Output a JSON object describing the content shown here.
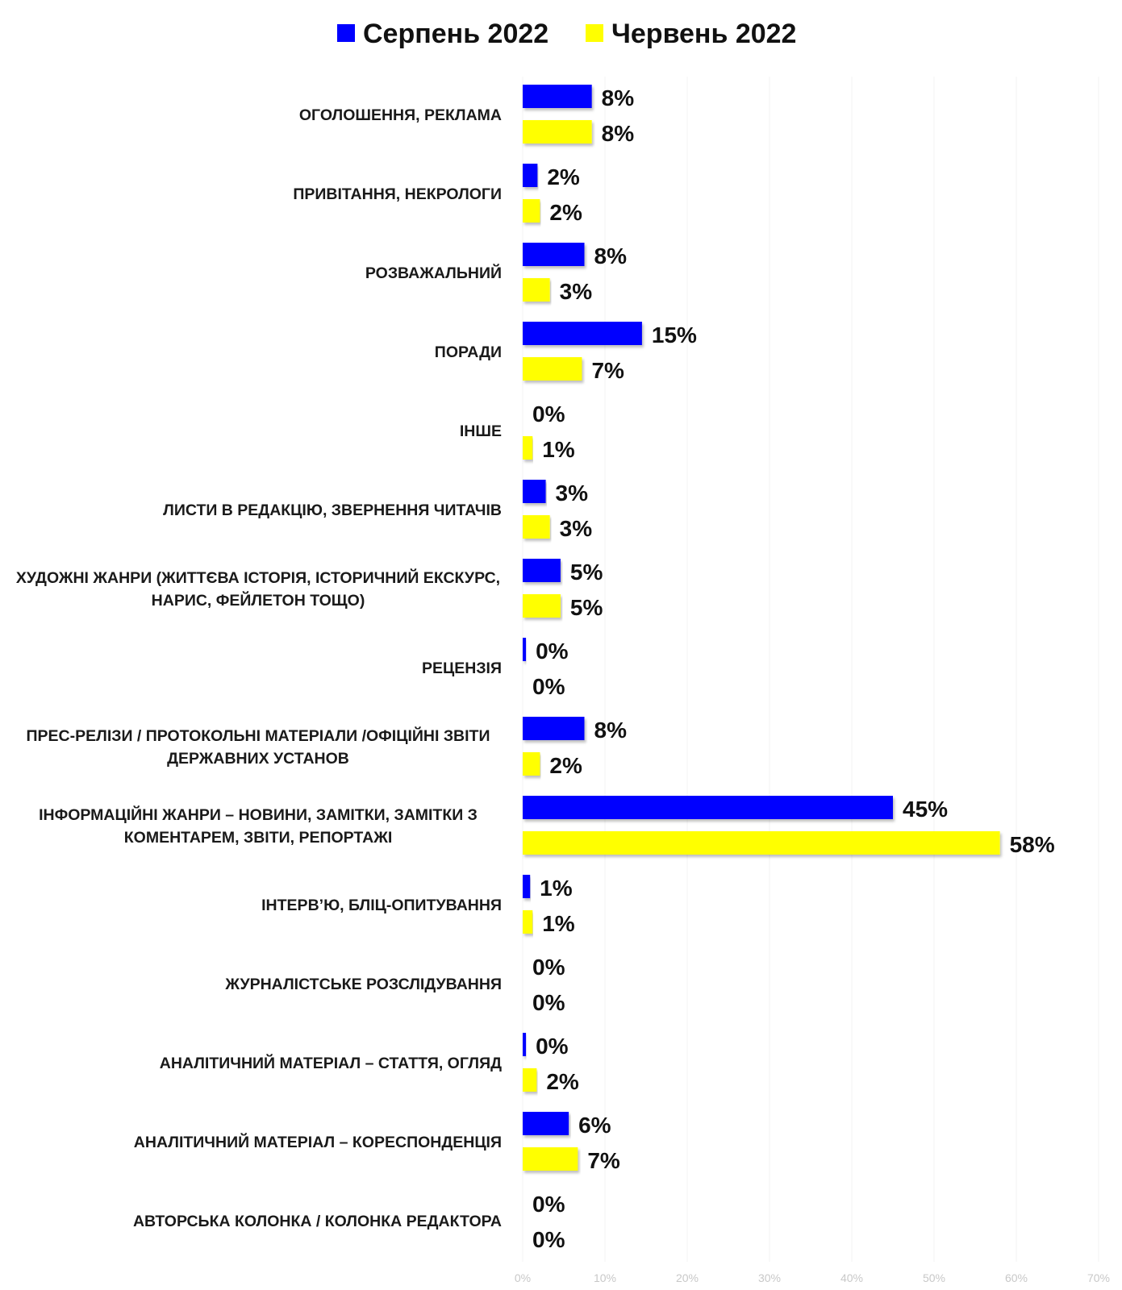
{
  "chart_data": {
    "type": "bar",
    "orientation": "horizontal",
    "categories": [
      "ОГОЛОШЕННЯ, РЕКЛАМА",
      "ПРИВІТАННЯ, НЕКРОЛОГИ",
      "РОЗВАЖАЛЬНИЙ",
      "ПОРАДИ",
      "ІНШЕ",
      "ЛИСТИ В РЕДАКЦІЮ, ЗВЕРНЕННЯ ЧИТАЧІВ",
      [
        "ХУДОЖНІ ЖАНРИ (ЖИТТЄВА ІСТОРІЯ, ІСТОРИЧНИЙ ЕКСКУРС,",
        "НАРИС, ФЕЙЛЕТОН ТОЩО)"
      ],
      "РЕЦЕНЗІЯ",
      [
        "ПРЕС-РЕЛІЗИ / ПРОТОКОЛЬНІ МАТЕРІАЛИ /ОФІЦІЙНІ ЗВІТИ",
        "ДЕРЖАВНИХ УСТАНОВ"
      ],
      [
        "ІНФОРМАЦІЙНІ ЖАНРИ – НОВИНИ, ЗАМІТКИ, ЗАМІТКИ З",
        "КОМЕНТАРЕМ, ЗВІТИ, РЕПОРТАЖІ"
      ],
      "ІНТЕРВ’Ю, БЛІЦ-ОПИТУВАННЯ",
      "ЖУРНАЛІСТСЬКЕ РОЗСЛІДУВАННЯ",
      "АНАЛІТИЧНИЙ МАТЕРІАЛ – СТАТТЯ, ОГЛЯД",
      "АНАЛІТИЧНИЙ МАТЕРІАЛ – КОРЕСПОНДЕНЦІЯ",
      "АВТОРСЬКА КОЛОНКА / КОЛОНКА РЕДАКТОРА"
    ],
    "series": [
      {
        "name": "Серпень 2022",
        "color": "#0000ff",
        "values": [
          8.4,
          1.8,
          7.5,
          14.5,
          0,
          2.8,
          4.6,
          0.4,
          7.5,
          45,
          0.9,
          0,
          0.4,
          5.6,
          0
        ],
        "labels": [
          "8%",
          "2%",
          "8%",
          "15%",
          "0%",
          "3%",
          "5%",
          "0%",
          "8%",
          "45%",
          "1%",
          "0%",
          "0%",
          "6%",
          "0%"
        ]
      },
      {
        "name": "Червень 2022",
        "color": "#ffff00",
        "values": [
          8.4,
          2.1,
          3.3,
          7.2,
          1.2,
          3.3,
          4.6,
          0,
          2.1,
          58,
          1.2,
          0,
          1.7,
          6.7,
          0
        ],
        "labels": [
          "8%",
          "2%",
          "3%",
          "7%",
          "1%",
          "3%",
          "5%",
          "0%",
          "2%",
          "58%",
          "1%",
          "0%",
          "2%",
          "7%",
          "0%"
        ]
      }
    ],
    "xlim": [
      0,
      70
    ],
    "xticks": [
      "0%",
      "10%",
      "20%",
      "30%",
      "40%",
      "50%",
      "60%",
      "70%"
    ],
    "grid": true,
    "legend_position": "top"
  }
}
